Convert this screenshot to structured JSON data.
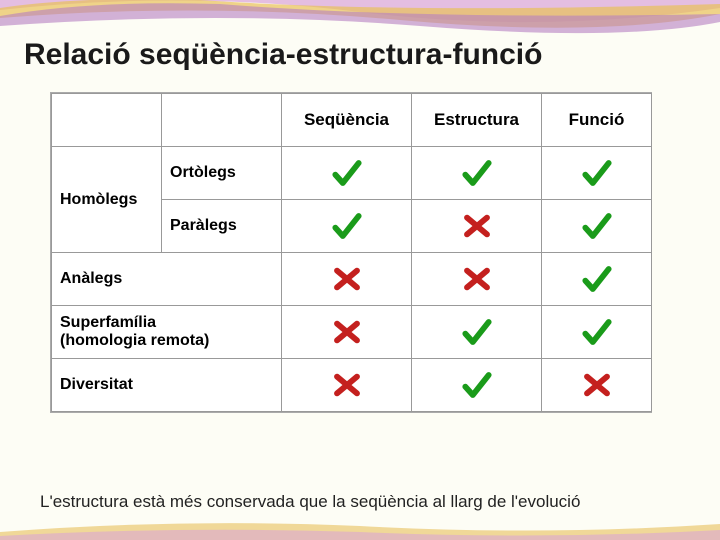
{
  "title": "Relació seqüència-estructura-funció",
  "columns": [
    "Seqüència",
    "Estructura",
    "Funció"
  ],
  "rows": [
    {
      "group": "Homòlegs",
      "label": "Ortòlegs",
      "marks": [
        "check",
        "check",
        "check"
      ]
    },
    {
      "label": "Paràlegs",
      "marks": [
        "check",
        "cross",
        "check"
      ]
    },
    {
      "label": "Anàlegs",
      "marks": [
        "cross",
        "cross",
        "check"
      ]
    },
    {
      "label": "Superfamília",
      "sub": "(homologia remota)",
      "marks": [
        "cross",
        "check",
        "check"
      ]
    },
    {
      "label": "Diversitat",
      "marks": [
        "cross",
        "check",
        "cross"
      ]
    }
  ],
  "caption": "L'estructura està més conservada que la seqüència al llarg de l'evolució",
  "mark_colors": {
    "check": "#1a9b1a",
    "cross": "#c4201e"
  },
  "background_color": "#fdfdf5",
  "table_bg": "#ffffff",
  "border_color": "#999999",
  "title_fontsize": 30,
  "header_fontsize": 17,
  "cell_fontsize": 17,
  "caption_fontsize": 17
}
